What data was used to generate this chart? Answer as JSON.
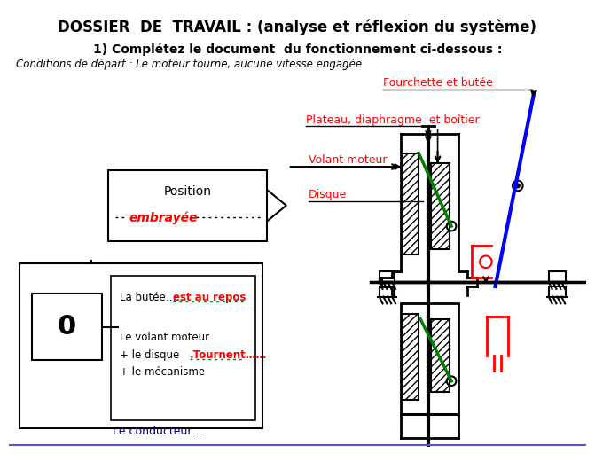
{
  "title": "DOSSIER  DE  TRAVAIL : (analyse et réflexion du système)",
  "subtitle1": "1) Complétez le document  du fonctionnement ci-dessous :",
  "subtitle2": "Conditions de départ : Le moteur tourne, aucune vitesse engagée",
  "label_fourchette": "Fourchette et butée",
  "label_plateau": "Plateau, diaphragme  et boîtier",
  "label_volant": "Volant moteur",
  "label_disque": "Disque",
  "label_position": "Position",
  "label_embrayee": "embrayée",
  "label_butee": "La butée……",
  "label_repos": "est au repos",
  "label_volant2": "Le volant moteur",
  "label_disque2": "+ le disque",
  "label_tournent": ".Tournent……",
  "label_mecanisme": "+ le mécanisme",
  "label_conducteur": "Le conducteur…",
  "label_zero": "0",
  "bg_color": "#ffffff",
  "black": "#000000",
  "red": "#ff0000",
  "blue": "#0000ff",
  "green": "#008000",
  "gray": "#808080",
  "navy": "#000080"
}
